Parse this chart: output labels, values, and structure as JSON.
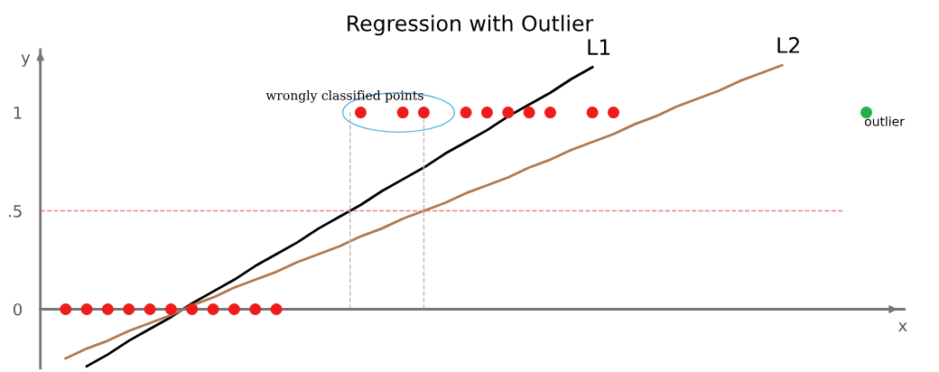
{
  "chart_data": {
    "type": "scatter",
    "title": "Regression with Outlier",
    "xlabel": "x",
    "ylabel": "y",
    "categories": [
      null,
      null,
      null,
      null,
      null,
      null,
      null,
      null,
      null,
      null,
      null,
      null,
      null,
      null,
      null,
      null,
      null,
      null,
      null,
      null,
      null,
      null,
      null,
      null,
      null,
      null,
      null,
      null,
      null,
      null,
      null,
      null,
      null,
      null,
      null,
      null,
      null,
      null,
      null,
      null
    ],
    "series": [
      {
        "name": "L1",
        "type": "line",
        "color": "#000000",
        "values": [
          null,
          -0.29,
          -0.23,
          -0.16,
          -0.1,
          -0.04,
          0.03,
          0.09,
          0.15,
          0.22,
          0.28,
          0.34,
          0.41,
          0.47,
          0.53,
          0.6,
          0.66,
          0.72,
          0.79,
          0.85,
          0.91,
          0.98,
          1.04,
          1.1,
          1.17,
          1.23,
          null,
          null,
          null,
          null,
          null,
          null,
          null,
          null,
          null,
          null,
          null,
          null,
          null,
          null
        ]
      },
      {
        "name": "L2",
        "type": "line",
        "color": "#b07a50",
        "values": [
          -0.25,
          -0.2,
          -0.16,
          -0.11,
          -0.07,
          -0.03,
          0.02,
          0.06,
          0.11,
          0.15,
          0.19,
          0.24,
          0.28,
          0.32,
          0.37,
          0.41,
          0.46,
          0.5,
          0.54,
          0.59,
          0.63,
          0.67,
          0.72,
          0.76,
          0.81,
          0.85,
          0.89,
          0.94,
          0.98,
          1.03,
          1.07,
          1.11,
          1.16,
          1.2,
          1.24,
          null,
          null,
          null,
          null,
          null
        ]
      },
      {
        "color": "#ee1c1c",
        "values": [
          0,
          0,
          0,
          0,
          0,
          0,
          0,
          0,
          0,
          0,
          0,
          null,
          null,
          null,
          1,
          null,
          1,
          1,
          null,
          1,
          1,
          1,
          1,
          1,
          null,
          1,
          1,
          null,
          null,
          null,
          null,
          null,
          null,
          null,
          null,
          null,
          null,
          null,
          null,
          null
        ]
      },
      {
        "name": "outlier",
        "color": "#22b14c",
        "values": [
          null,
          null,
          null,
          null,
          null,
          null,
          null,
          null,
          null,
          null,
          null,
          null,
          null,
          null,
          null,
          null,
          null,
          null,
          null,
          null,
          null,
          null,
          null,
          null,
          null,
          null,
          null,
          null,
          null,
          null,
          null,
          null,
          null,
          null,
          null,
          null,
          null,
          null,
          1,
          null
        ]
      }
    ],
    "annotations": [
      "wrongly classified points"
    ],
    "ref_lines": [
      {
        "axis": "y",
        "value": 0.5,
        "color": "#f08080",
        "line_style": "dashed"
      }
    ],
    "ylim": [
      -0.3,
      1.32
    ],
    "yticks": [
      0,
      {
        "value": 0.5,
        "label": ".5"
      },
      1
    ],
    "tick_labels": "y",
    "grid": false,
    "legend": false,
    "line_style": "solid"
  }
}
